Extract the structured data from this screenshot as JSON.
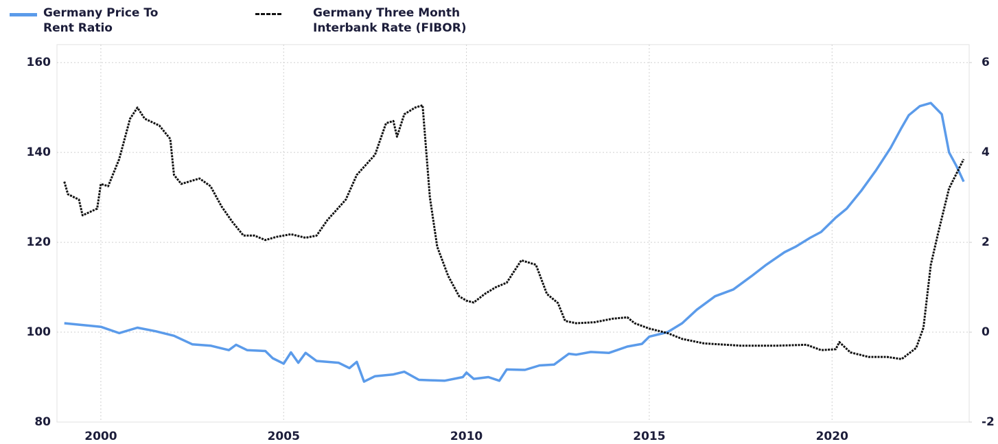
{
  "chart_data": {
    "type": "line",
    "xlim": [
      1998.8,
      2023.75
    ],
    "xticks": [
      2000,
      2005,
      2010,
      2015,
      2020
    ],
    "ylim": [
      80,
      164
    ],
    "yticks": [
      80,
      100,
      120,
      140,
      160
    ],
    "y2lim": [
      -2,
      6.4
    ],
    "y2ticks": [
      -2,
      0,
      2,
      4,
      6
    ],
    "grid": true,
    "series": [
      {
        "name": "Germany Price To Rent Ratio",
        "color": "#5b9bea",
        "axis": "y",
        "x": [
          1999.0,
          1999.5,
          2000.0,
          2000.5,
          2001.0,
          2001.5,
          2002.0,
          2002.5,
          2003.0,
          2003.5,
          2003.7,
          2004.0,
          2004.5,
          2004.7,
          2005.0,
          2005.2,
          2005.4,
          2005.6,
          2005.9,
          2006.5,
          2006.8,
          2007.0,
          2007.2,
          2007.5,
          2008.0,
          2008.3,
          2008.7,
          2009.0,
          2009.4,
          2009.9,
          2010.0,
          2010.2,
          2010.6,
          2010.9,
          2011.1,
          2011.6,
          2012.0,
          2012.4,
          2012.8,
          2013.0,
          2013.4,
          2013.9,
          2014.4,
          2014.8,
          2015.0,
          2015.5,
          2015.9,
          2016.3,
          2016.8,
          2017.3,
          2017.8,
          2018.2,
          2018.7,
          2019.0,
          2019.4,
          2019.7,
          2020.1,
          2020.4,
          2020.8,
          2021.2,
          2021.6,
          2021.9,
          2022.1,
          2022.4,
          2022.7,
          2023.0,
          2023.2,
          2023.4,
          2023.6
        ],
        "values": [
          102,
          101.6,
          101.2,
          99.8,
          101,
          100.2,
          99.2,
          97.3,
          97,
          96,
          97.2,
          96,
          95.8,
          94.2,
          93,
          95.5,
          93.2,
          95.4,
          93.6,
          93.2,
          92,
          93.4,
          89,
          90.2,
          90.6,
          91.2,
          89.4,
          89.3,
          89.2,
          90,
          91,
          89.6,
          90,
          89.2,
          91.7,
          91.6,
          92.6,
          92.8,
          95.2,
          95,
          95.6,
          95.4,
          96.8,
          97.4,
          99,
          100,
          102,
          105,
          108,
          109.5,
          112.5,
          115,
          117.8,
          119,
          121,
          122.3,
          125.5,
          127.5,
          131.5,
          136,
          141,
          145.5,
          148.3,
          150.3,
          151,
          148.5,
          140,
          137,
          133.5
        ]
      },
      {
        "name": "Germany Three Month Interbank Rate  (FIBOR)",
        "color": "#111111",
        "axis": "y2",
        "x": [
          1999.0,
          1999.1,
          1999.4,
          1999.5,
          1999.9,
          2000.0,
          2000.2,
          2000.5,
          2000.8,
          2001.0,
          2001.2,
          2001.6,
          2001.9,
          2002.0,
          2002.2,
          2002.7,
          2003.0,
          2003.3,
          2003.6,
          2003.9,
          2004.2,
          2004.5,
          2004.8,
          2005.2,
          2005.6,
          2005.9,
          2006.2,
          2006.7,
          2007.0,
          2007.5,
          2007.8,
          2008.0,
          2008.1,
          2008.3,
          2008.6,
          2008.8,
          2009.0,
          2009.2,
          2009.5,
          2009.8,
          2010.0,
          2010.2,
          2010.5,
          2010.8,
          2011.1,
          2011.5,
          2011.9,
          2012.2,
          2012.5,
          2012.7,
          2013.0,
          2013.5,
          2014.0,
          2014.4,
          2014.6,
          2015.0,
          2015.5,
          2015.9,
          2016.5,
          2017.5,
          2018.5,
          2019.3,
          2019.7,
          2020.1,
          2020.2,
          2020.5,
          2021.0,
          2021.5,
          2021.9,
          2022.3,
          2022.5,
          2022.7,
          2022.9,
          2023.2,
          2023.6
        ],
        "values": [
          3.35,
          3.07,
          2.95,
          2.6,
          2.75,
          3.3,
          3.25,
          3.85,
          4.75,
          5.0,
          4.75,
          4.6,
          4.3,
          3.5,
          3.3,
          3.42,
          3.25,
          2.8,
          2.45,
          2.15,
          2.15,
          2.05,
          2.12,
          2.18,
          2.1,
          2.15,
          2.5,
          2.95,
          3.5,
          3.95,
          4.65,
          4.7,
          4.35,
          4.85,
          5.0,
          5.05,
          3.0,
          1.9,
          1.25,
          0.8,
          0.7,
          0.66,
          0.85,
          1.0,
          1.1,
          1.6,
          1.5,
          0.85,
          0.65,
          0.25,
          0.2,
          0.22,
          0.3,
          0.33,
          0.2,
          0.08,
          -0.02,
          -0.15,
          -0.25,
          -0.3,
          -0.3,
          -0.28,
          -0.4,
          -0.38,
          -0.22,
          -0.45,
          -0.55,
          -0.55,
          -0.6,
          -0.35,
          0.1,
          1.5,
          2.2,
          3.2,
          3.85
        ]
      }
    ]
  }
}
